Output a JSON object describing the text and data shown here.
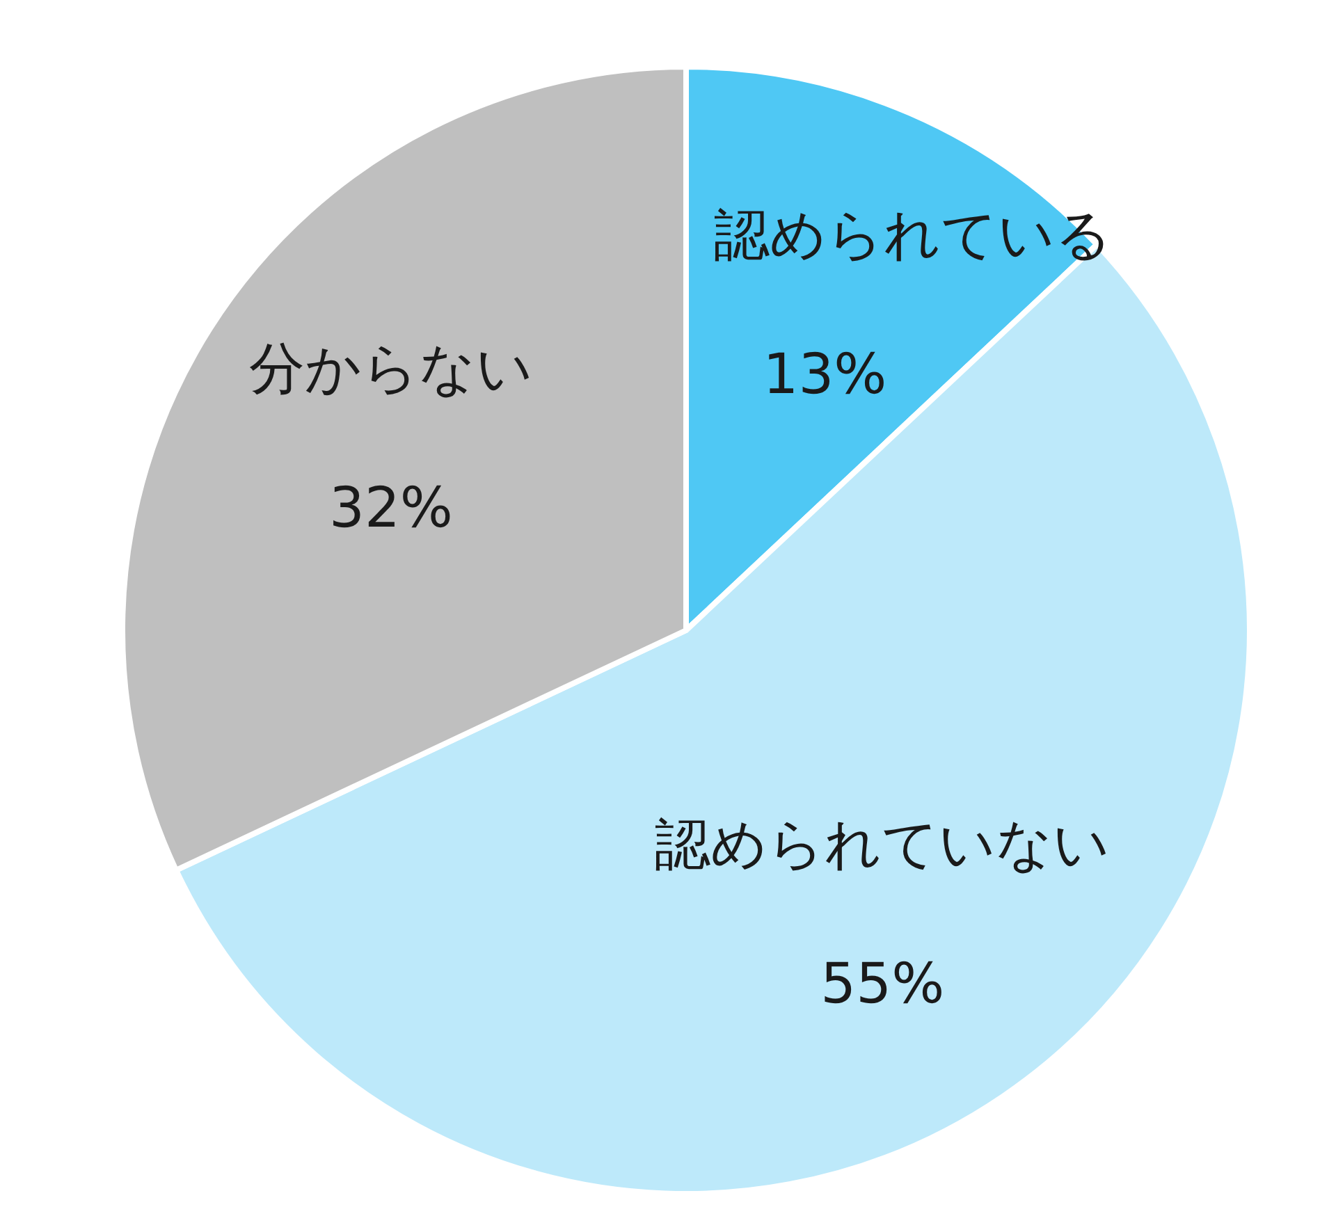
{
  "chart_data": {
    "type": "pie",
    "categories": [
      "認められている",
      "認められていない",
      "分からない"
    ],
    "values": [
      13,
      55,
      32
    ],
    "value_labels": [
      "13%",
      "55%",
      "32%"
    ],
    "colors": [
      "#4fc8f4",
      "#bde9fa",
      "#bfbfbf"
    ]
  }
}
